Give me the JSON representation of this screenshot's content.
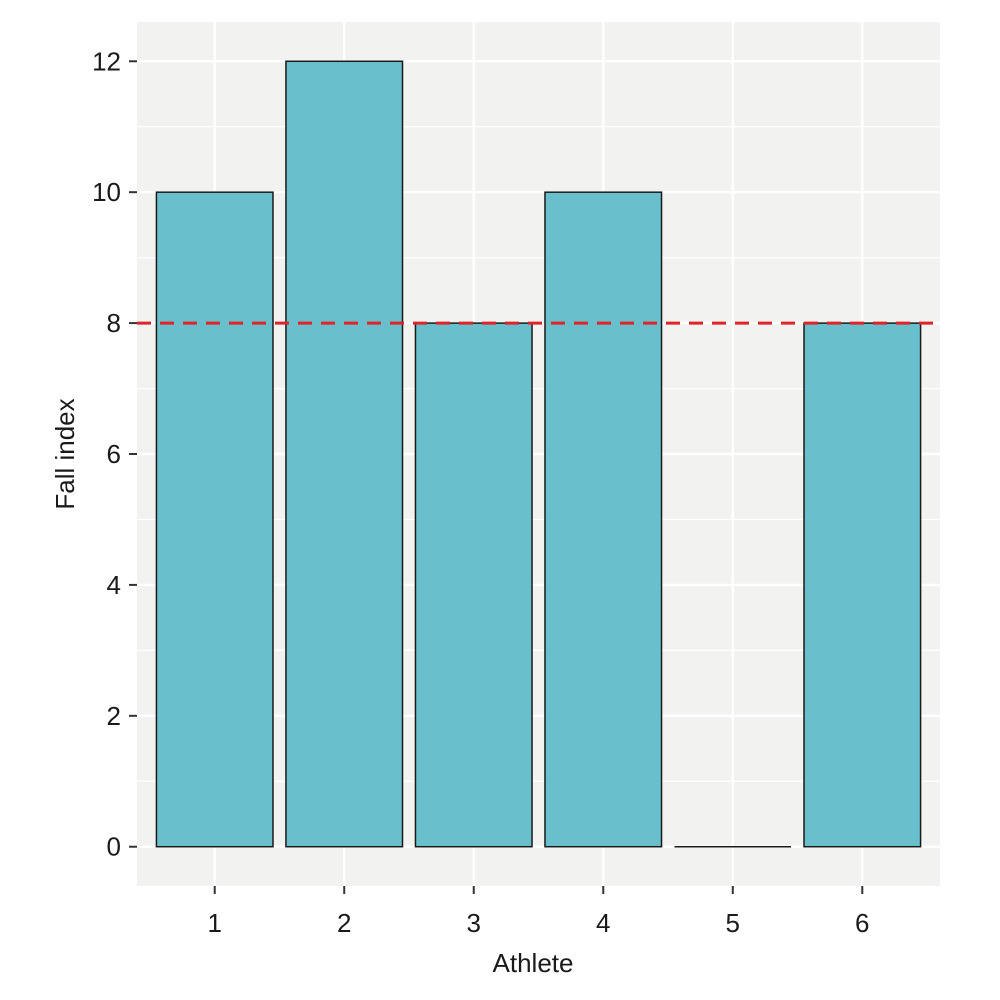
{
  "chart_data": {
    "type": "bar",
    "title": "",
    "xlabel": "Athlete",
    "ylabel": "Fall index",
    "categories": [
      "1",
      "2",
      "3",
      "4",
      "5",
      "6"
    ],
    "values": [
      10,
      12,
      8,
      10,
      0,
      8
    ],
    "ylim": [
      -0.6,
      12.6
    ],
    "y_ticks": [
      0,
      2,
      4,
      6,
      8,
      10,
      12
    ],
    "reference_line": {
      "y": 8,
      "style": "dashed",
      "color": "#e0242b"
    },
    "grid": true,
    "legend": "none",
    "colors": {
      "bar_fill": "#69bfcb",
      "bar_stroke": "#1a1a1a",
      "panel_background": "#f2f2f0",
      "grid": "#ffffff"
    }
  }
}
